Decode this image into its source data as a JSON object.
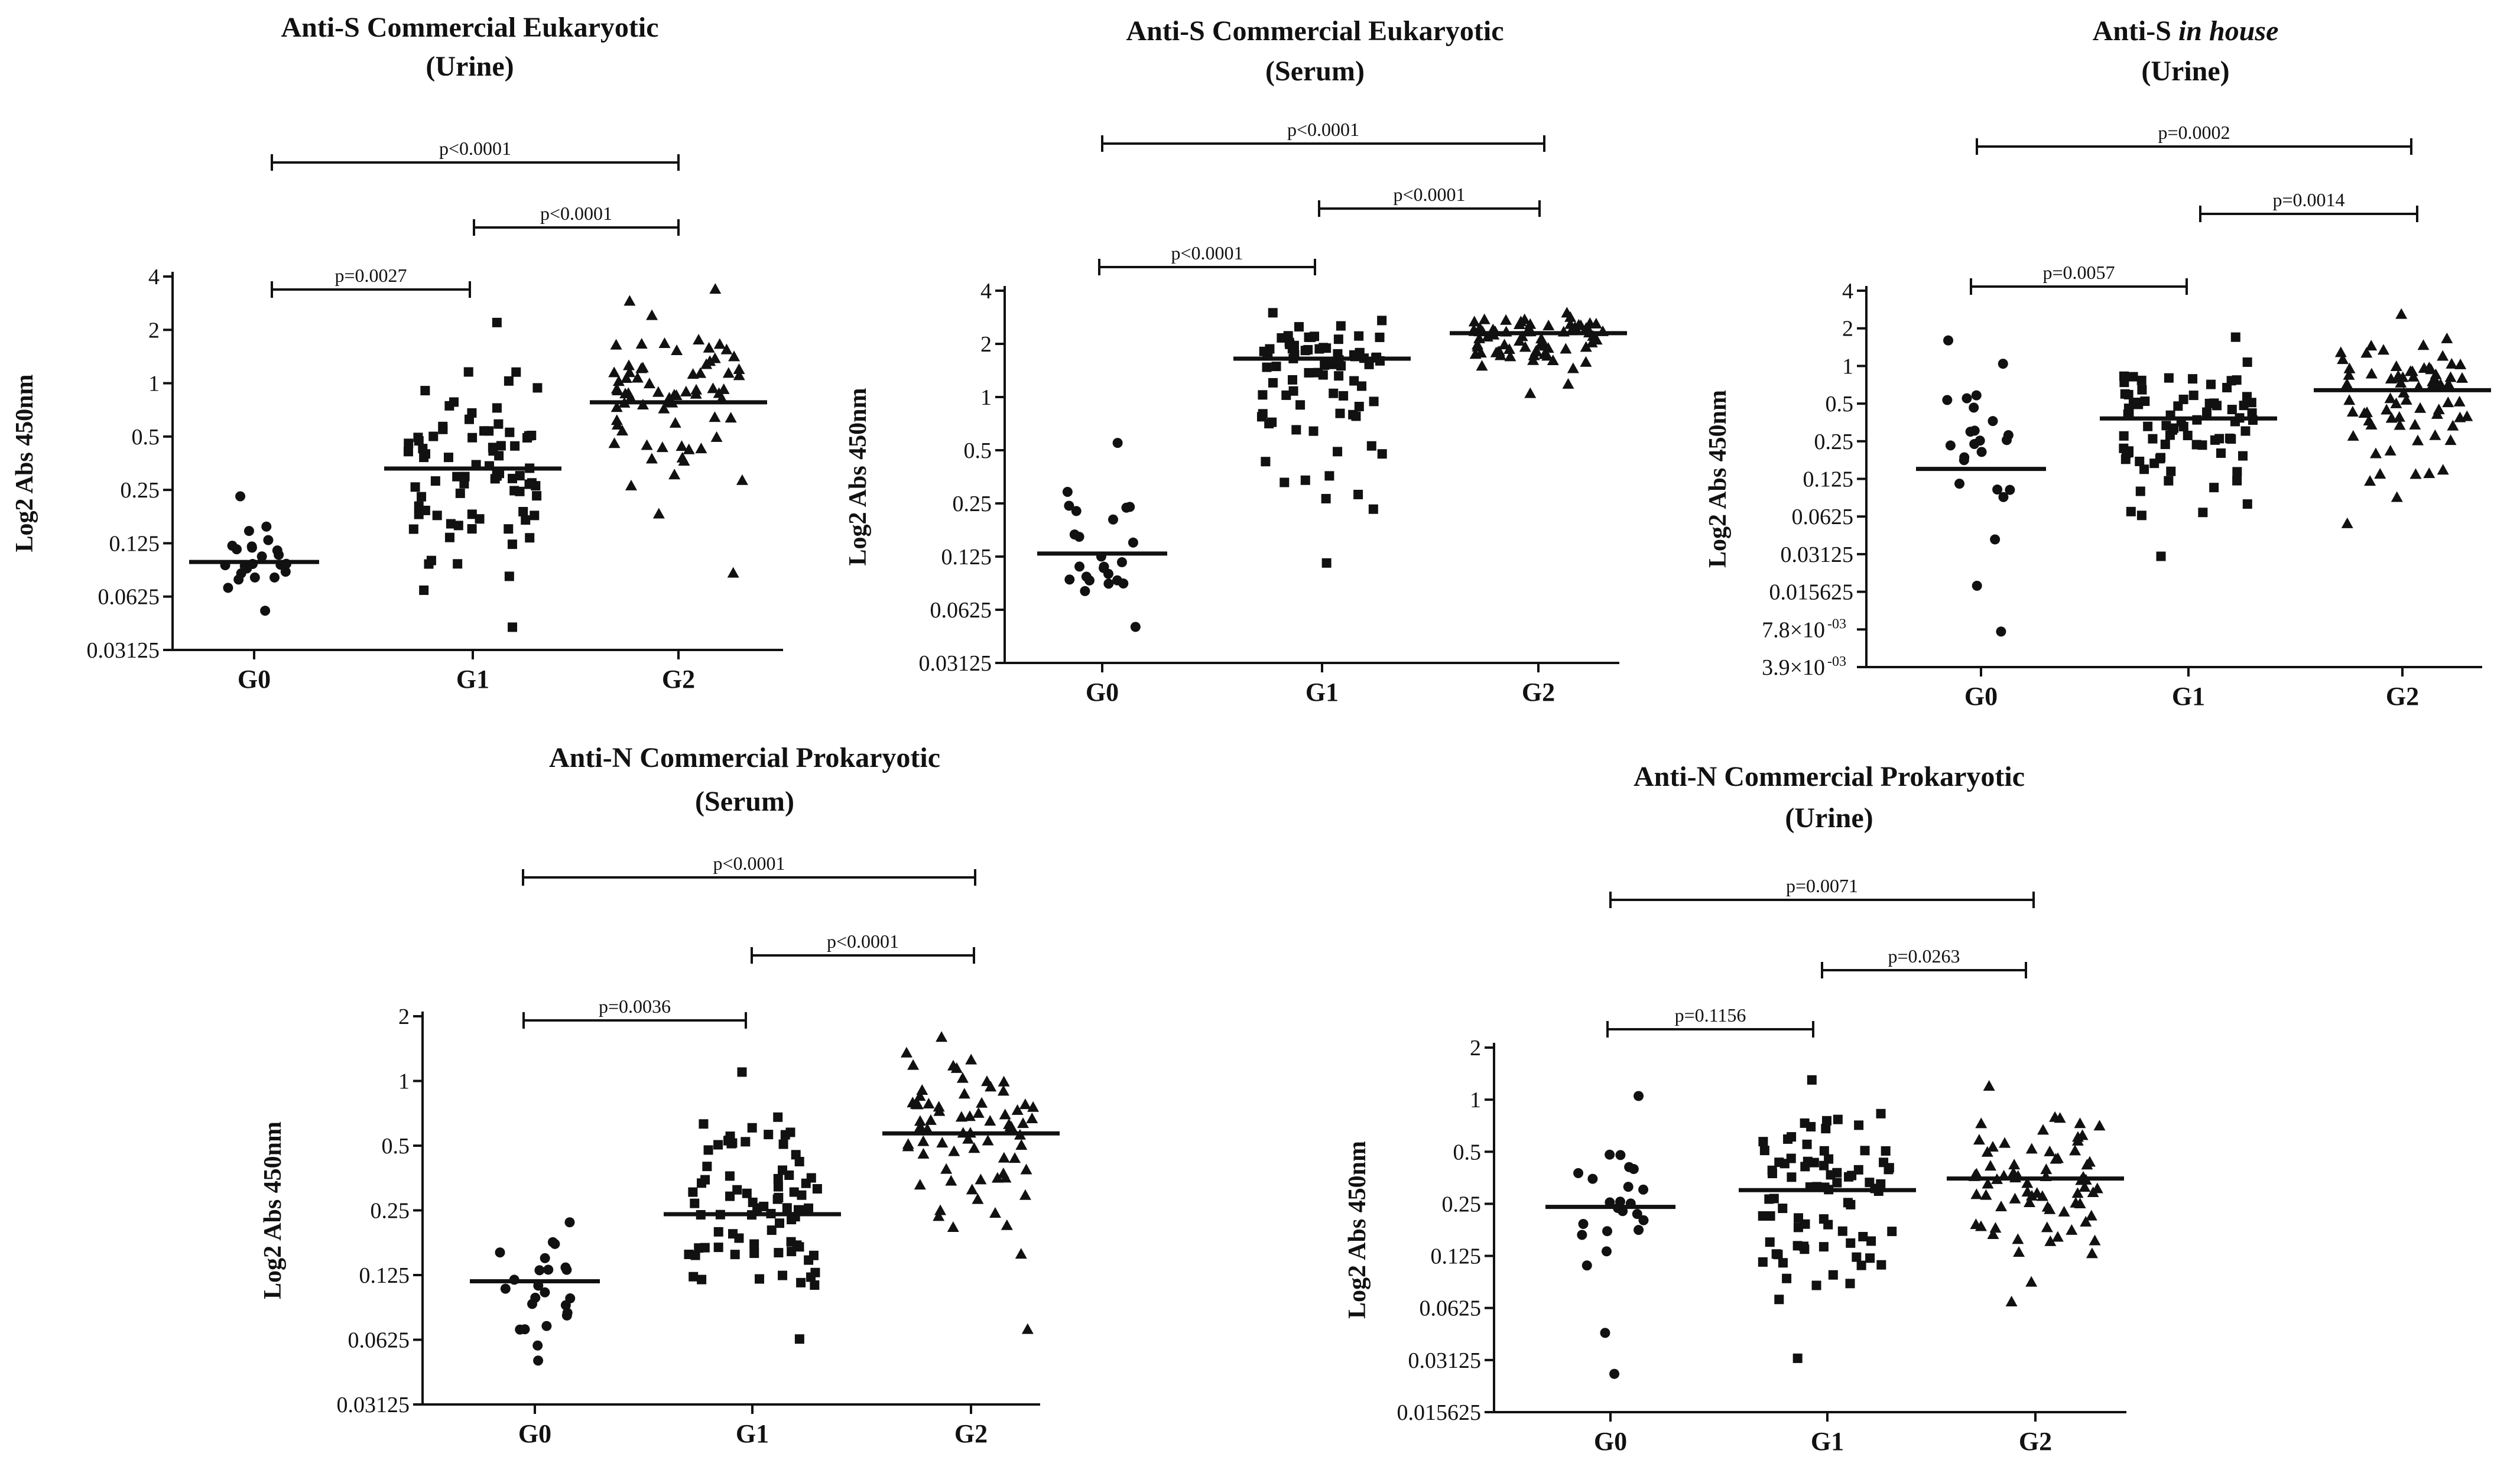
{
  "chart_data": [
    {
      "type": "scatter",
      "title": [
        "Anti-S Commercial Eukaryotic",
        "(Urine)"
      ],
      "ylabel": "Log2 Abs 450nm",
      "yscale": "log2",
      "ylim": [
        0.03125,
        4
      ],
      "yticks": [
        "4",
        "2",
        "1",
        "0.5",
        "0.25",
        "0.125",
        "0.0625",
        "0.03125"
      ],
      "categories": [
        "G0",
        "G1",
        "G2"
      ],
      "medians": [
        0.098,
        0.33,
        0.78
      ],
      "groups": [
        {
          "name": "G0",
          "marker": "circle",
          "min": 0.052,
          "max": 0.23,
          "n": 24
        },
        {
          "name": "G1",
          "marker": "square",
          "min": 0.042,
          "max": 2.2,
          "n": 80
        },
        {
          "name": "G2",
          "marker": "triangle",
          "min": 0.085,
          "max": 3.4,
          "n": 72
        }
      ],
      "comparisons": [
        {
          "from": "G0",
          "to": "G2",
          "label": "p<0.0001"
        },
        {
          "from": "G1",
          "to": "G2",
          "label": "p<0.0001"
        },
        {
          "from": "G0",
          "to": "G1",
          "label": "p=0.0027"
        }
      ]
    },
    {
      "type": "scatter",
      "title": [
        "Anti-S Commercial Eukaryotic",
        "(Serum)"
      ],
      "ylabel": "Log2 Abs 450nm",
      "yscale": "log2",
      "ylim": [
        0.03125,
        4
      ],
      "yticks": [
        "4",
        "2",
        "1",
        "0.5",
        "0.25",
        "0.125",
        "0.0625",
        "0.03125"
      ],
      "categories": [
        "G0",
        "G1",
        "G2"
      ],
      "medians": [
        0.13,
        1.65,
        2.3
      ],
      "groups": [
        {
          "name": "G0",
          "marker": "circle",
          "min": 0.05,
          "max": 0.55,
          "n": 24
        },
        {
          "name": "G1",
          "marker": "square",
          "min": 0.115,
          "max": 3.0,
          "n": 80
        },
        {
          "name": "G2",
          "marker": "triangle",
          "min": 1.05,
          "max": 3.0,
          "n": 72
        }
      ],
      "comparisons": [
        {
          "from": "G0",
          "to": "G2",
          "label": "p<0.0001"
        },
        {
          "from": "G1",
          "to": "G2",
          "label": "p<0.0001"
        },
        {
          "from": "G0",
          "to": "G1",
          "label": "p<0.0001"
        }
      ]
    },
    {
      "type": "scatter",
      "title": [
        "Anti-S ",
        "in house",
        "(Urine)"
      ],
      "ylabel": "Log2 Abs 450nm",
      "yscale": "log2",
      "ylim": [
        0.0039,
        4
      ],
      "yticks": [
        "4",
        "2",
        "1",
        "0.5",
        "0.25",
        "0.125",
        "0.0625",
        "0.03125",
        "0.015625",
        "7.8×10",
        "3.9×10"
      ],
      "ytick_exponent": "-03",
      "categories": [
        "G0",
        "G1",
        "G2"
      ],
      "medians": [
        0.15,
        0.38,
        0.64
      ],
      "groups": [
        {
          "name": "G0",
          "marker": "circle",
          "min": 0.0075,
          "max": 1.6,
          "n": 24
        },
        {
          "name": "G1",
          "marker": "square",
          "min": 0.03,
          "max": 1.7,
          "n": 80
        },
        {
          "name": "G2",
          "marker": "triangle",
          "min": 0.055,
          "max": 2.6,
          "n": 72
        }
      ],
      "comparisons": [
        {
          "from": "G0",
          "to": "G2",
          "label": "p=0.0002"
        },
        {
          "from": "G1",
          "to": "G2",
          "label": "p=0.0014"
        },
        {
          "from": "G0",
          "to": "G1",
          "label": "p=0.0057"
        }
      ]
    },
    {
      "type": "scatter",
      "title": [
        "Anti-N Commercial Prokaryotic",
        "(Serum)"
      ],
      "ylabel": "Log2 Abs 450nm",
      "yscale": "log2",
      "ylim": [
        0.03125,
        2
      ],
      "yticks": [
        "2",
        "1",
        "0.5",
        "0.25",
        "0.125",
        "0.0625",
        "0.03125"
      ],
      "categories": [
        "G0",
        "G1",
        "G2"
      ],
      "medians": [
        0.117,
        0.24,
        0.57
      ],
      "groups": [
        {
          "name": "G0",
          "marker": "circle",
          "min": 0.05,
          "max": 0.22,
          "n": 24
        },
        {
          "name": "G1",
          "marker": "square",
          "min": 0.063,
          "max": 1.1,
          "n": 80
        },
        {
          "name": "G2",
          "marker": "triangle",
          "min": 0.07,
          "max": 1.6,
          "n": 72
        }
      ],
      "comparisons": [
        {
          "from": "G0",
          "to": "G2",
          "label": "p<0.0001"
        },
        {
          "from": "G1",
          "to": "G2",
          "label": "p<0.0001"
        },
        {
          "from": "G0",
          "to": "G1",
          "label": "p=0.0036"
        }
      ]
    },
    {
      "type": "scatter",
      "title": [
        "Anti-N Commercial Prokaryotic",
        "(Urine)"
      ],
      "ylabel": "Log2 Abs 450nm",
      "yscale": "log2",
      "ylim": [
        0.015625,
        2
      ],
      "yticks": [
        "2",
        "1",
        "0.5",
        "0.25",
        "0.125",
        "0.0625",
        "0.03125",
        "0.015625"
      ],
      "categories": [
        "G0",
        "G1",
        "G2"
      ],
      "medians": [
        0.24,
        0.3,
        0.35
      ],
      "groups": [
        {
          "name": "G0",
          "marker": "circle",
          "min": 0.026,
          "max": 1.05,
          "n": 24
        },
        {
          "name": "G1",
          "marker": "square",
          "min": 0.032,
          "max": 1.3,
          "n": 80
        },
        {
          "name": "G2",
          "marker": "triangle",
          "min": 0.068,
          "max": 1.2,
          "n": 72
        }
      ],
      "comparisons": [
        {
          "from": "G0",
          "to": "G2",
          "label": "p=0.0071"
        },
        {
          "from": "G1",
          "to": "G2",
          "label": "p=0.0263"
        },
        {
          "from": "G0",
          "to": "G1",
          "label": "p=0.1156"
        }
      ]
    }
  ]
}
